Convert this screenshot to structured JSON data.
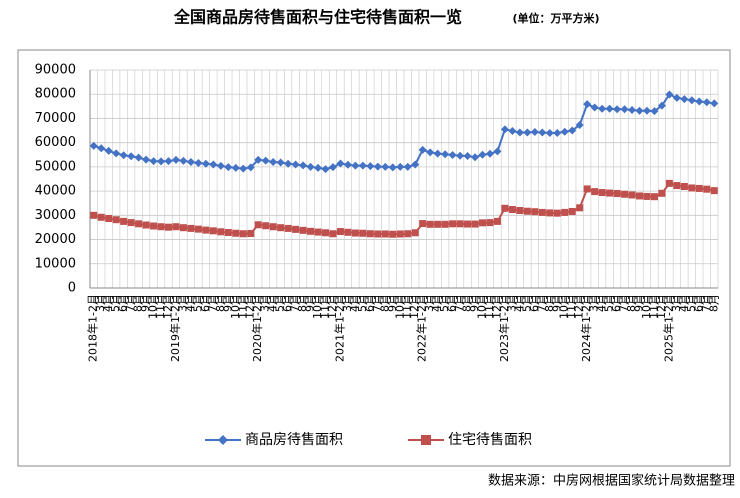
{
  "chart_data": {
    "type": "line",
    "title": "全国商品房待售面积与住宅待售面积一览",
    "subtitle": "(单位：万平方米)",
    "source": "数据来源：中房网根据国家统计局数据整理",
    "categories": [
      "2018年1-2月",
      "3月",
      "4月",
      "5月",
      "6月",
      "7月",
      "8月",
      "9月",
      "10月",
      "11月",
      "12月",
      "2019年1-2月",
      "3月",
      "4月",
      "5月",
      "6月",
      "7月",
      "8月",
      "9月",
      "10月",
      "11月",
      "12月",
      "2020年1-2月",
      "3月",
      "4月",
      "5月",
      "6月",
      "7月",
      "8月",
      "9月",
      "10月",
      "11月",
      "12月",
      "2021年1-2月",
      "3月",
      "4月",
      "5月",
      "6月",
      "7月",
      "8月",
      "9月",
      "10月",
      "11月",
      "12月",
      "2022年1-2月",
      "3月",
      "4月",
      "5月",
      "6月",
      "7月",
      "8月",
      "9月",
      "10月",
      "11月",
      "12月",
      "2023年1-2月",
      "3月",
      "4月",
      "5月",
      "6月",
      "7月",
      "8月",
      "9月",
      "10月",
      "11月",
      "12月",
      "2024年1-2月",
      "3月",
      "4月",
      "5月",
      "6月",
      "7月",
      "8月",
      "9月",
      "10月",
      "11月",
      "12月",
      "2025年1-2月",
      "3月",
      "4月",
      "5月",
      "6月",
      "7月",
      "8月"
    ],
    "series": [
      {
        "name": "商品房待售面积",
        "color": "#4472c4",
        "marker": "diamond",
        "values": [
          58700,
          57700,
          56600,
          55600,
          54800,
          54400,
          53800,
          53000,
          52400,
          52300,
          52400,
          52900,
          52500,
          52000,
          51600,
          51300,
          51000,
          50400,
          49900,
          49600,
          49300,
          49800,
          52900,
          52600,
          52000,
          51800,
          51300,
          51000,
          50600,
          50000,
          49600,
          49100,
          49900,
          51400,
          50900,
          50500,
          50500,
          50300,
          50100,
          50000,
          49800,
          50000,
          50000,
          51000,
          57000,
          56000,
          55500,
          55200,
          54900,
          54600,
          54500,
          54000,
          55000,
          55400,
          56400,
          65500,
          64800,
          64200,
          64200,
          64400,
          64200,
          64000,
          64000,
          64500,
          65000,
          67300,
          75900,
          74500,
          74000,
          74000,
          73800,
          73800,
          73500,
          73200,
          73200,
          73000,
          75300,
          79900,
          78500,
          78000,
          77500,
          77000,
          76700,
          76200
        ]
      },
      {
        "name": "住宅待售面积",
        "color": "#c0504d",
        "marker": "square",
        "values": [
          30000,
          29200,
          28700,
          28200,
          27500,
          27000,
          26500,
          26000,
          25600,
          25300,
          25100,
          25300,
          24900,
          24600,
          24300,
          23900,
          23600,
          23200,
          22900,
          22600,
          22400,
          22500,
          26100,
          25700,
          25300,
          24900,
          24600,
          24200,
          23800,
          23400,
          23100,
          22800,
          22400,
          23300,
          23000,
          22700,
          22600,
          22400,
          22300,
          22300,
          22200,
          22300,
          22400,
          22800,
          26600,
          26300,
          26300,
          26300,
          26500,
          26500,
          26400,
          26400,
          26900,
          27000,
          27500,
          32900,
          32400,
          32000,
          31700,
          31500,
          31200,
          31000,
          30900,
          31200,
          31600,
          33100,
          40900,
          39800,
          39400,
          39200,
          39000,
          38700,
          38400,
          38000,
          37800,
          37700,
          39100,
          43200,
          42300,
          41900,
          41300,
          41100,
          40800,
          40200
        ]
      }
    ],
    "ylim": [
      0,
      90000
    ],
    "yticks": [
      0,
      10000,
      20000,
      30000,
      40000,
      50000,
      60000,
      70000,
      80000,
      90000
    ],
    "grid": true,
    "legend": "bottom"
  }
}
